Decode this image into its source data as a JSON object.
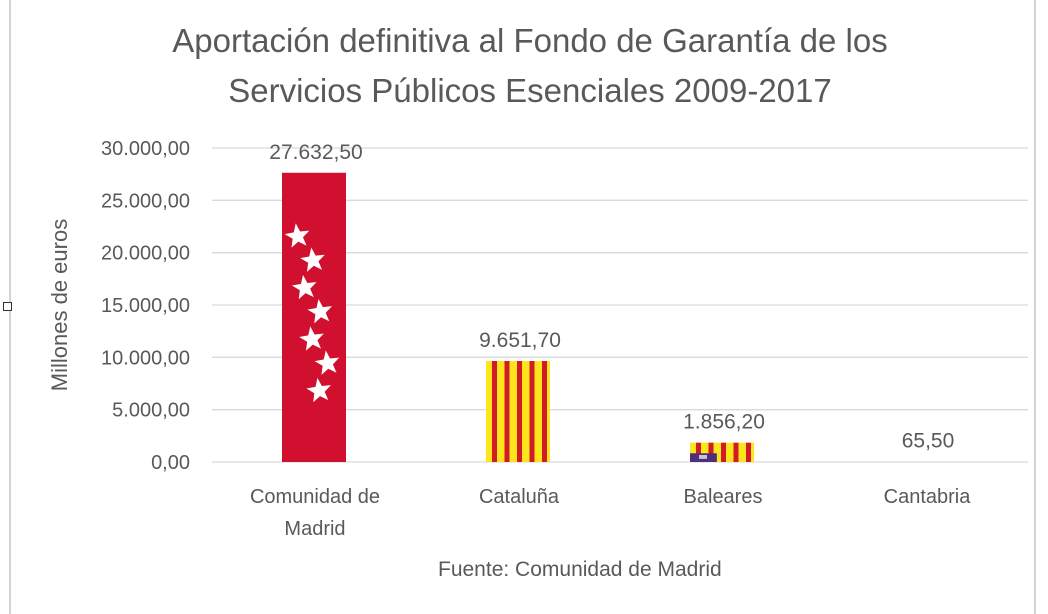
{
  "chart_data": {
    "type": "bar",
    "title_lines": [
      "Aportación definitiva al Fondo de Garantía de los",
      "Servicios Públicos Esenciales 2009-2017"
    ],
    "xlabel": "",
    "ylabel": "Millones de euros",
    "ylim": [
      0,
      30000
    ],
    "yticks": [
      0,
      5000,
      10000,
      15000,
      20000,
      25000,
      30000
    ],
    "ytick_labels": [
      "0,00",
      "5.000,00",
      "10.000,00",
      "15.000,00",
      "20.000,00",
      "25.000,00",
      "30.000,00"
    ],
    "grid": true,
    "categories": [
      "Comunidad de Madrid",
      "Cataluña",
      "Baleares",
      "Cantabria"
    ],
    "category_label_lines": [
      [
        "Comunidad de",
        "Madrid"
      ],
      [
        "Cataluña"
      ],
      [
        "Baleares"
      ],
      [
        "Cantabria"
      ]
    ],
    "values": [
      27632.5,
      9651.7,
      1856.2,
      65.5
    ],
    "data_labels": [
      "27.632,50",
      "9.651,70",
      "1.856,20",
      "65,50"
    ],
    "bar_fills": [
      "madrid-flag",
      "catalonia-flag",
      "balearic-flag",
      "none"
    ],
    "colors": {
      "madrid_red": "#d0102e",
      "star_white": "#ffffff",
      "catalan_yellow": "#fce51c",
      "catalan_red": "#d21c25",
      "balearic_purple": "#4d2f7a",
      "grid": "#d9d9d9",
      "text": "#595959"
    }
  },
  "footer": {
    "source": "Fuente: Comunidad de Madrid"
  }
}
